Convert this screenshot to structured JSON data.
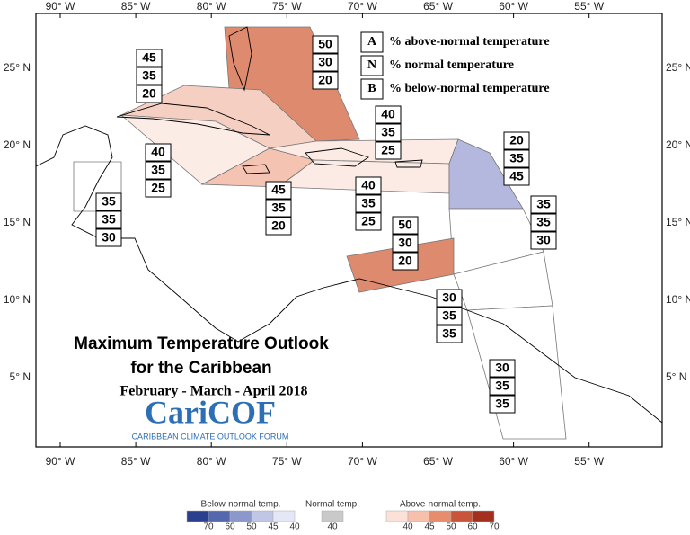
{
  "axes": {
    "lon_labels": [
      "90° W",
      "85° W",
      "80° W",
      "75° W",
      "70° W",
      "65° W",
      "60° W",
      "55° W"
    ],
    "lat_labels": [
      "25° N",
      "20° N",
      "15° N",
      "10° N",
      "5° N"
    ]
  },
  "key": [
    {
      "letter": "A",
      "text": "% above-normal temperature"
    },
    {
      "letter": "N",
      "text": "% normal temperature"
    },
    {
      "letter": "B",
      "text": "% below-normal temperature"
    }
  ],
  "regions": [
    {
      "above": "50",
      "normal": "30",
      "below": "20"
    },
    {
      "above": "45",
      "normal": "35",
      "below": "20"
    },
    {
      "above": "40",
      "normal": "35",
      "below": "25"
    },
    {
      "above": "40",
      "normal": "35",
      "below": "25"
    },
    {
      "above": "20",
      "normal": "35",
      "below": "45"
    },
    {
      "above": "35",
      "normal": "35",
      "below": "30"
    },
    {
      "above": "45",
      "normal": "35",
      "below": "20"
    },
    {
      "above": "40",
      "normal": "35",
      "below": "25"
    },
    {
      "above": "50",
      "normal": "30",
      "below": "20"
    },
    {
      "above": "30",
      "normal": "35",
      "below": "35"
    },
    {
      "above": "30",
      "normal": "35",
      "below": "35"
    },
    {
      "above": "35",
      "normal": "35",
      "below": "30"
    }
  ],
  "title": {
    "line1": "Maximum Temperature Outlook",
    "line2": "for the Caribbean",
    "season": "February - March - April 2018"
  },
  "logo": {
    "name": "CariCOF",
    "tagline": "CARIBBEAN CLIMATE OUTLOOK FORUM"
  },
  "color_legend": {
    "below": {
      "title": "Below-normal temp.",
      "ticks": [
        "70",
        "60",
        "50",
        "45",
        "40"
      ]
    },
    "normal": {
      "title": "Normal temp.",
      "ticks": [
        "40"
      ]
    },
    "above": {
      "title": "Above-normal temp.",
      "ticks": [
        "40",
        "45",
        "50",
        "60",
        "70"
      ]
    }
  }
}
